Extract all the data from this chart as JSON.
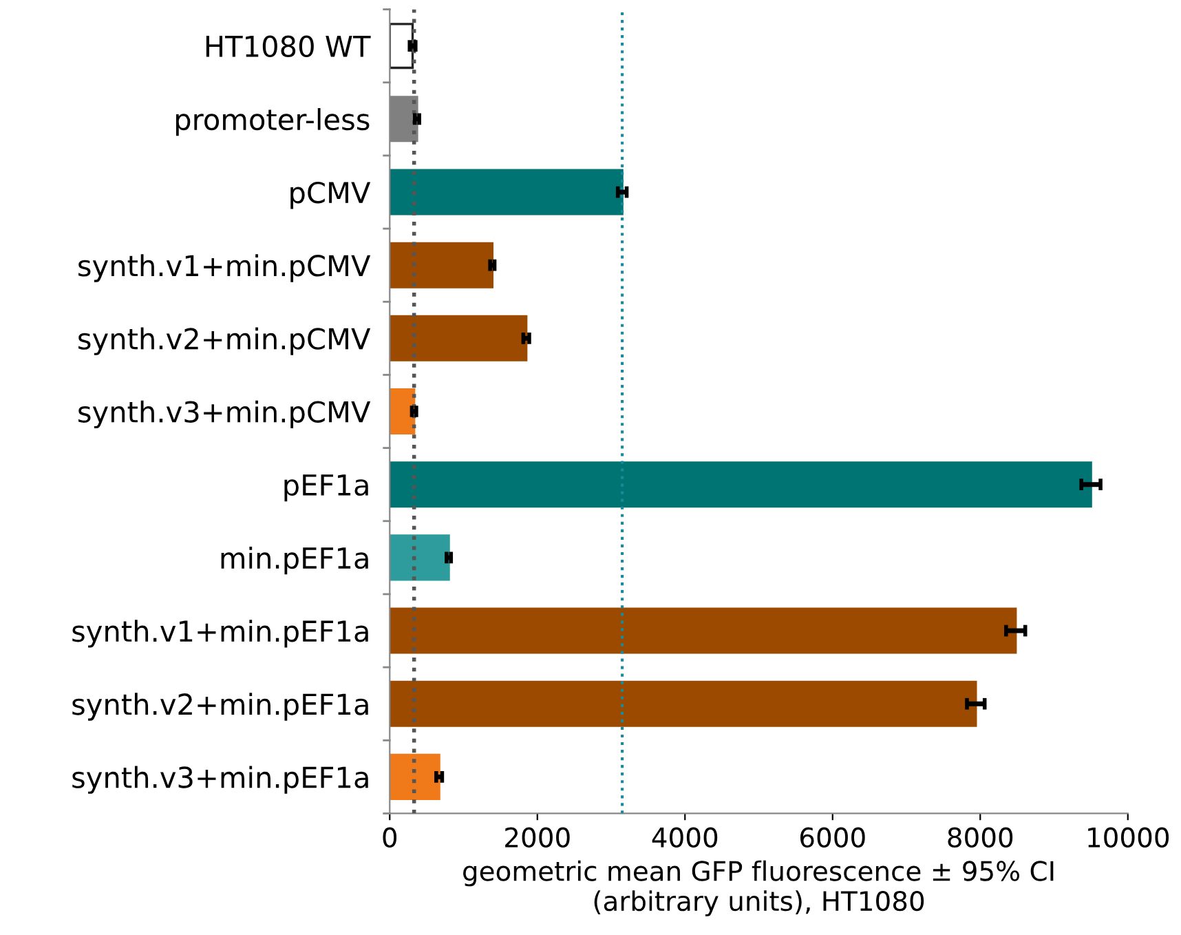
{
  "chart_data": {
    "type": "bar",
    "orientation": "horizontal",
    "categories": [
      "HT1080 WT",
      "promoter-less",
      "pCMV",
      "synth.v1+min.pCMV",
      "synth.v2+min.pCMV",
      "synth.v3+min.pCMV",
      "pEF1a",
      "min.pEF1a",
      "synth.v1+min.pEF1a",
      "synth.v2+min.pEF1a",
      "synth.v3+min.pEF1a"
    ],
    "values": [
      310,
      370,
      3150,
      1390,
      1850,
      330,
      9500,
      800,
      8480,
      7940,
      670
    ],
    "errors": [
      40,
      30,
      60,
      30,
      40,
      30,
      130,
      30,
      130,
      120,
      40
    ],
    "colors": [
      "#ffffff",
      "#808080",
      "#007472",
      "#9c4a00",
      "#9c4a00",
      "#f07a1a",
      "#007472",
      "#2e9c9c",
      "#9c4a00",
      "#9c4a00",
      "#f07a1a"
    ],
    "xlabel": "geometric mean GFP fluorescence ± 95% CI\n(arbitrary units), HT1080",
    "xlim": [
      0,
      10000
    ],
    "xticks": [
      0,
      2000,
      4000,
      6000,
      8000,
      10000
    ],
    "ref_lines": [
      {
        "axis": "x",
        "value": 330,
        "color": "#555555",
        "line_style": "dotted"
      },
      {
        "axis": "x",
        "value": 3150,
        "color": "#1a8a9a",
        "line_style": "dotted"
      }
    ],
    "grid": false,
    "legend": false
  }
}
